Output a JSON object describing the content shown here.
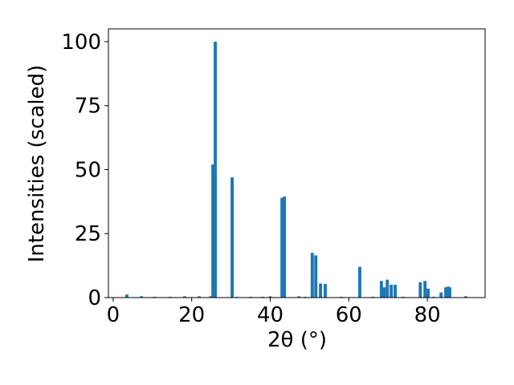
{
  "chart_data": {
    "type": "bar",
    "xlabel": "2θ (°)",
    "ylabel": "Intensities (scaled)",
    "x": [
      3.5,
      7.2,
      10.6,
      14.5,
      18.2,
      21.9,
      24.8,
      25.4,
      26.0,
      30.3,
      31.5,
      35.0,
      38.0,
      40.0,
      43.0,
      43.6,
      47.3,
      48.9,
      50.7,
      51.6,
      52.8,
      54.0,
      58.1,
      62.8,
      66.1,
      68.3,
      69.0,
      69.8,
      70.8,
      71.8,
      73.9,
      78.2,
      79.4,
      80.2,
      81.6,
      83.5,
      84.7,
      85.3,
      85.7,
      89.8
    ],
    "values": [
      1.2,
      0.5,
      0.3,
      0.3,
      0.5,
      0.5,
      0.5,
      52,
      100,
      47,
      0.3,
      0.3,
      0.3,
      0.5,
      39,
      39.5,
      0.5,
      0.3,
      17.5,
      16.5,
      5.5,
      5.3,
      0.3,
      12,
      0.3,
      6.5,
      4,
      7,
      5,
      5,
      0.3,
      6,
      6.5,
      3.5,
      0.3,
      2,
      4,
      4.3,
      4,
      0.5
    ],
    "color": "#1f77b4",
    "xlim": [
      -1.2,
      94.7
    ],
    "xticks": [
      0,
      20,
      40,
      60,
      80
    ],
    "ylim": [
      0,
      105
    ],
    "yticks": [
      0,
      25,
      50,
      75,
      100
    ],
    "grid": false
  }
}
